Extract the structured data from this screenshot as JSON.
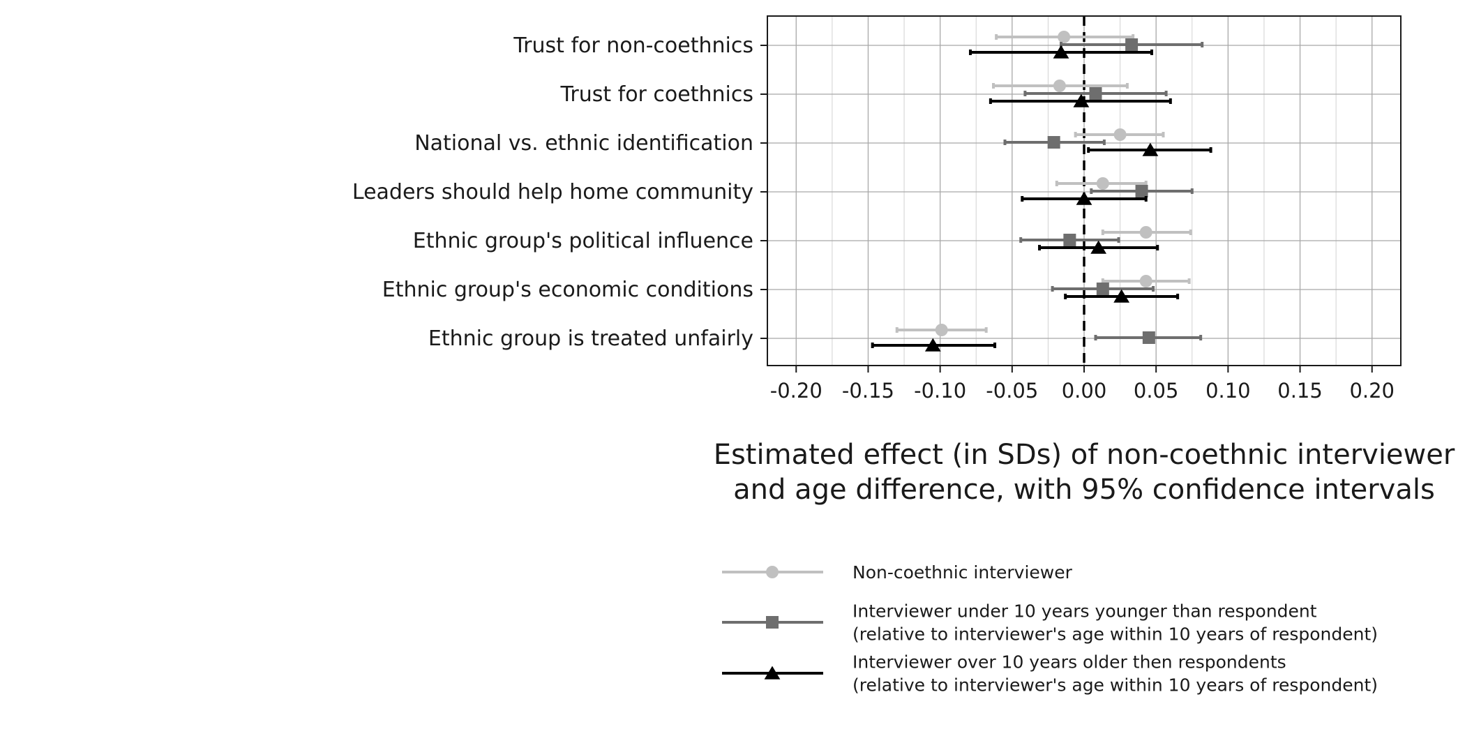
{
  "chart_data": {
    "type": "scatter",
    "subtype": "coefficient-plot-with-error-bars",
    "title": "",
    "xlabel_lines": [
      "Estimated effect (in SDs) of non-coethnic interviewer",
      "and age difference, with 95% confidence intervals"
    ],
    "ylabel": "",
    "xlim": [
      -0.22,
      0.22
    ],
    "x_ticks": [
      -0.2,
      -0.15,
      -0.1,
      -0.05,
      0.0,
      0.05,
      0.1,
      0.15,
      0.2
    ],
    "x_tick_labels": [
      "-0.20",
      "-0.15",
      "-0.10",
      "-0.05",
      "0.00",
      "0.05",
      "0.10",
      "0.15",
      "0.20"
    ],
    "reference_line": 0,
    "grid": true,
    "legend_position": "bottom",
    "categories": [
      "Trust for non-coethnics",
      "Trust for coethnics",
      "National vs. ethnic identification",
      "Leaders should help home community",
      "Ethnic group's political influence",
      "Ethnic group's economic conditions",
      "Ethnic group is treated unfairly"
    ],
    "series": [
      {
        "name_lines": [
          "Non-coethnic interviewer"
        ],
        "marker": "circle",
        "color": "#c0c0c0",
        "estimates": [
          -0.014,
          -0.017,
          0.025,
          0.013,
          0.043,
          0.043,
          -0.099
        ],
        "ci_low": [
          -0.061,
          -0.063,
          -0.006,
          -0.019,
          0.013,
          0.013,
          -0.13
        ],
        "ci_high": [
          0.034,
          0.03,
          0.055,
          0.043,
          0.074,
          0.073,
          -0.068
        ]
      },
      {
        "name_lines": [
          "Interviewer under 10 years younger than respondent",
          "(relative to interviewer's age within 10 years of respondent)"
        ],
        "marker": "square",
        "color": "#6e6e6e",
        "estimates": [
          0.033,
          0.008,
          -0.021,
          0.04,
          -0.01,
          0.013,
          0.045
        ],
        "ci_low": [
          -0.016,
          -0.041,
          -0.055,
          0.005,
          -0.044,
          -0.022,
          0.008
        ],
        "ci_high": [
          0.082,
          0.057,
          0.014,
          0.075,
          0.024,
          0.048,
          0.081
        ]
      },
      {
        "name_lines": [
          "Interviewer over 10 years older then respondents",
          "(relative to interviewer's age within 10 years of respondent)"
        ],
        "marker": "triangle",
        "color": "#000000",
        "estimates": [
          -0.016,
          -0.002,
          0.046,
          0.0,
          0.01,
          0.026,
          -0.105
        ],
        "ci_low": [
          -0.079,
          -0.065,
          0.003,
          -0.043,
          -0.031,
          -0.013,
          -0.147
        ],
        "ci_high": [
          0.047,
          0.06,
          0.088,
          0.043,
          0.051,
          0.065,
          -0.062
        ]
      }
    ]
  }
}
